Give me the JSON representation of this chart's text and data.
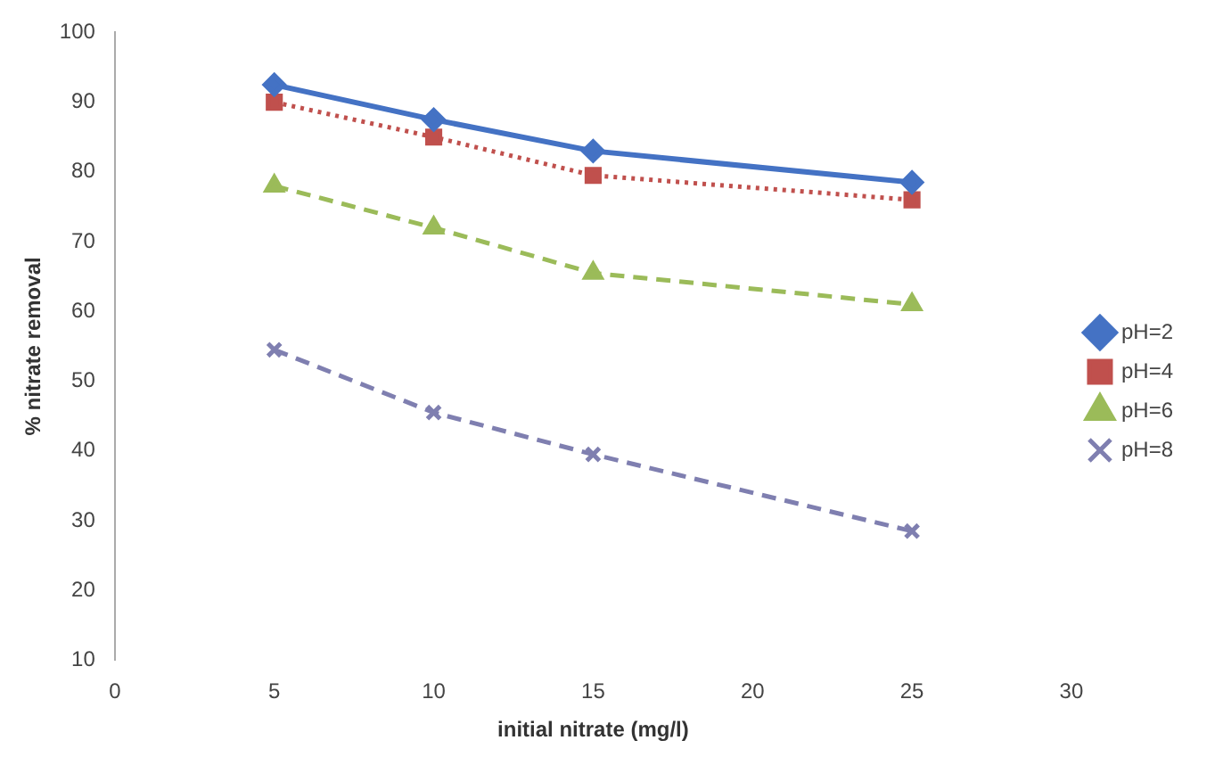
{
  "chart_data": {
    "type": "line",
    "xlabel": "initial nitrate (mg/l)",
    "ylabel": "% nitrate removal",
    "x": [
      5,
      10,
      15,
      20,
      25
    ],
    "series": [
      {
        "name": "pH=2",
        "color": "#4472c4",
        "values": [
          92.5,
          87.5,
          83,
          null,
          78.5
        ],
        "marker": "diamond",
        "line_style": "solid"
      },
      {
        "name": "pH=4",
        "color": "#c0504d",
        "values": [
          90,
          85,
          79.5,
          null,
          76
        ],
        "marker": "square",
        "line_style": "dotted"
      },
      {
        "name": "pH=6",
        "color": "#9bbb59",
        "values": [
          78,
          72,
          65.5,
          null,
          61
        ],
        "marker": "triangle",
        "line_style": "dashed"
      },
      {
        "name": "pH=8",
        "color": "#7f7fb0",
        "values": [
          54.5,
          45.5,
          39.5,
          null,
          28.5
        ],
        "marker": "cross",
        "line_style": "dashed"
      }
    ],
    "xlim": [
      0,
      30
    ],
    "xticks": [
      0,
      5,
      10,
      15,
      20,
      25,
      30
    ],
    "ylim": [
      10,
      100
    ],
    "yticks": [
      10,
      20,
      30,
      40,
      50,
      60,
      70,
      80,
      90,
      100
    ],
    "grid": false,
    "legend": "right"
  }
}
